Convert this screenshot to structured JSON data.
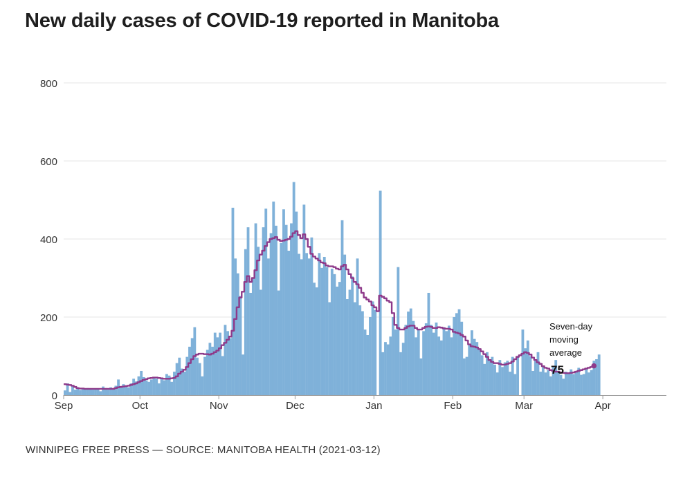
{
  "title": "New daily cases of COVID-19 reported in Manitoba",
  "footer": "WINNIPEG FREE PRESS — SOURCE: MANITOBA HEALTH (2021-03-12)",
  "colors": {
    "bar": "#7fb1d9",
    "line": "#8e3a8a",
    "grid": "#e6e6e6",
    "axis": "#999999"
  },
  "chart_data": {
    "type": "bar",
    "title": "New daily cases of COVID-19 reported in Manitoba",
    "xlabel": "",
    "ylabel": "",
    "ylim": [
      0,
      800
    ],
    "yticks": [
      "0",
      "200",
      "400",
      "600",
      "800"
    ],
    "ytick_values": [
      0,
      200,
      400,
      600,
      800
    ],
    "xticks": [
      {
        "label": "Sep",
        "day": 0
      },
      {
        "label": "Oct",
        "day": 30
      },
      {
        "label": "Nov",
        "day": 61
      },
      {
        "label": "Dec",
        "day": 91
      },
      {
        "label": "Jan",
        "day": 122
      },
      {
        "label": "Feb",
        "day": 153
      },
      {
        "label": "Mar",
        "day": 181
      },
      {
        "label": "Apr",
        "day": 212
      }
    ],
    "x_domain_days": [
      0,
      237
    ],
    "start_date": "2020-09-01",
    "series": [
      {
        "name": "Daily new cases",
        "values": [
          12,
          30,
          8,
          22,
          14,
          20,
          13,
          16,
          15,
          18,
          17,
          14,
          16,
          15,
          10,
          22,
          18,
          14,
          20,
          16,
          24,
          40,
          22,
          28,
          24,
          20,
          30,
          42,
          35,
          48,
          62,
          46,
          38,
          34,
          40,
          44,
          42,
          30,
          44,
          38,
          54,
          50,
          34,
          60,
          82,
          96,
          68,
          60,
          98,
          124,
          146,
          174,
          96,
          82,
          48,
          98,
          116,
          134,
          124,
          160,
          148,
          160,
          100,
          180,
          164,
          146,
          480,
          350,
          312,
          254,
          104,
          374,
          430,
          262,
          300,
          440,
          380,
          270,
          430,
          478,
          350,
          415,
          496,
          434,
          268,
          390,
          476,
          436,
          370,
          440,
          546,
          470,
          362,
          348,
          488,
          364,
          350,
          404,
          288,
          276,
          364,
          326,
          354,
          328,
          238,
          324,
          310,
          278,
          290,
          448,
          360,
          246,
          270,
          304,
          238,
          350,
          230,
          215,
          168,
          154,
          200,
          240,
          218,
          0,
          524,
          110,
          136,
          130,
          150,
          200,
          168,
          328,
          110,
          134,
          180,
          214,
          222,
          190,
          148,
          170,
          94,
          164,
          184,
          262,
          180,
          160,
          186,
          150,
          140,
          174,
          164,
          178,
          148,
          200,
          210,
          220,
          188,
          94,
          98,
          128,
          166,
          144,
          136,
          118,
          102,
          80,
          110,
          90,
          98,
          78,
          58,
          90,
          72,
          84,
          88,
          60,
          98,
          54,
          100,
          0,
          168,
          120,
          140,
          100,
          62,
          88,
          110,
          60,
          72,
          58,
          64,
          48,
          72,
          90,
          60,
          52,
          42,
          60,
          56,
          66,
          54,
          62,
          70,
          52,
          54,
          66,
          58,
          64,
          88,
          92,
          104
        ]
      },
      {
        "name": "Seven-day moving average",
        "values": [
          28,
          27,
          26,
          24,
          21,
          18,
          17,
          17,
          16,
          16,
          16,
          16,
          16,
          16,
          16,
          16,
          16,
          16,
          16,
          16,
          18,
          20,
          21,
          22,
          23,
          24,
          26,
          28,
          30,
          33,
          36,
          39,
          41,
          43,
          44,
          45,
          45,
          44,
          43,
          42,
          42,
          42,
          43,
          44,
          48,
          55,
          60,
          65,
          72,
          82,
          92,
          100,
          104,
          106,
          106,
          105,
          105,
          104,
          106,
          110,
          114,
          120,
          128,
          134,
          142,
          150,
          165,
          195,
          225,
          250,
          265,
          290,
          305,
          290,
          300,
          320,
          345,
          360,
          370,
          382,
          392,
          400,
          402,
          405,
          398,
          395,
          396,
          398,
          400,
          406,
          415,
          420,
          410,
          402,
          412,
          400,
          380,
          362,
          355,
          350,
          345,
          340,
          338,
          332,
          330,
          330,
          328,
          324,
          322,
          330,
          334,
          322,
          310,
          300,
          290,
          284,
          275,
          262,
          250,
          245,
          240,
          230,
          225,
          215,
          255,
          252,
          248,
          242,
          238,
          210,
          180,
          172,
          168,
          168,
          172,
          176,
          178,
          178,
          172,
          168,
          168,
          172,
          175,
          176,
          175,
          172,
          172,
          174,
          173,
          171,
          170,
          170,
          168,
          162,
          160,
          158,
          154,
          150,
          140,
          130,
          125,
          124,
          122,
          118,
          112,
          105,
          98,
          90,
          85,
          82,
          82,
          80,
          78,
          78,
          80,
          82,
          86,
          92,
          98,
          102,
          106,
          110,
          108,
          104,
          96,
          90,
          84,
          80,
          74,
          70,
          68,
          64,
          62,
          60,
          60,
          58,
          57,
          56,
          56,
          57,
          58,
          60,
          62,
          64,
          66,
          68,
          70,
          72,
          75
        ]
      }
    ],
    "annotation": {
      "label_lines": [
        "Seven-day",
        "moving",
        "average"
      ],
      "value": "75"
    }
  }
}
